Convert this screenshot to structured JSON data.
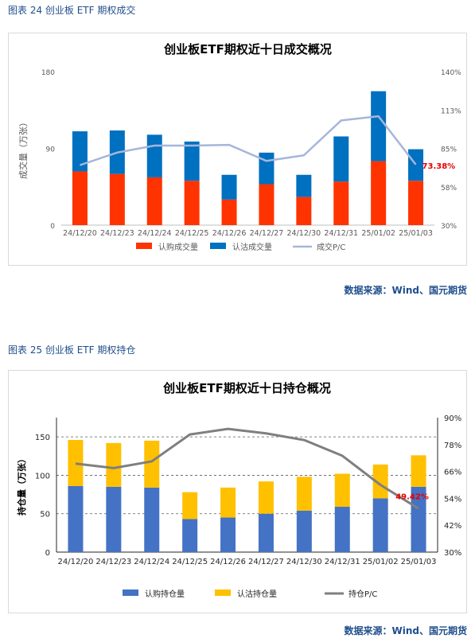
{
  "figures": [
    {
      "label": "图表 24 创业板 ETF 期权成交",
      "source": "数据来源：Wind、国元期货"
    },
    {
      "label": "图表 25 创业板 ETF 期权持仓",
      "source": "数据来源：Wind、国元期货"
    }
  ],
  "chart_data": [
    {
      "type": "bar",
      "stacked": true,
      "title": "创业板ETF期权近十日成交概况",
      "ylabel": "成交量（万张）",
      "xlabel": "",
      "ylim": [
        0,
        180
      ],
      "y_ticks": [
        "0",
        "90",
        "180"
      ],
      "y2lim": [
        30,
        140
      ],
      "y2_ticks": [
        "30%",
        "58%",
        "85%",
        "113%",
        "140%"
      ],
      "categories": [
        "24/12/20",
        "24/12/23",
        "24/12/24",
        "24/12/25",
        "24/12/26",
        "24/12/27",
        "24/12/30",
        "24/12/31",
        "25/01/02",
        "25/01/03"
      ],
      "series": [
        {
          "name": "认购成交量",
          "color": "#ff3300",
          "values": [
            63,
            60,
            56,
            52,
            30,
            48,
            33,
            51,
            75,
            52
          ]
        },
        {
          "name": "认沽成交量",
          "color": "#0070c0",
          "values": [
            47,
            51,
            50,
            46,
            29,
            37,
            26,
            53,
            82,
            37
          ]
        },
        {
          "name": "成交P/C",
          "color": "#a6b6da",
          "axis": "right",
          "kind": "line",
          "values": [
            73,
            82,
            87,
            87,
            87.5,
            76,
            80,
            105,
            108,
            73.38
          ]
        }
      ],
      "annotation": {
        "text": "73.38%",
        "color": "#e60000"
      },
      "legend": "bottom",
      "grid": false
    },
    {
      "type": "bar",
      "stacked": true,
      "title": "创业板ETF期权近十日持仓概况",
      "ylabel": "持仓量（万张）",
      "xlabel": "",
      "ylim": [
        0,
        175
      ],
      "y_ticks": [
        "0",
        "50",
        "100",
        "150"
      ],
      "y2lim": [
        30,
        90
      ],
      "y2_ticks": [
        "30%",
        "42%",
        "54%",
        "66%",
        "78%",
        "90%"
      ],
      "categories": [
        "24/12/20",
        "24/12/23",
        "24/12/24",
        "24/12/25",
        "24/12/26",
        "24/12/27",
        "24/12/30",
        "24/12/31",
        "25/01/02",
        "25/01/03"
      ],
      "series": [
        {
          "name": "认购持仓量",
          "color": "#4472c4",
          "values": [
            86,
            85,
            84,
            43,
            45,
            50,
            54,
            59,
            70,
            85
          ]
        },
        {
          "name": "认沽持仓量",
          "color": "#ffc000",
          "values": [
            60,
            57,
            61,
            35,
            39,
            42,
            44,
            43,
            44,
            41
          ]
        },
        {
          "name": "持仓P/C",
          "color": "#7f7f7f",
          "axis": "right",
          "kind": "line",
          "values": [
            69.5,
            67.5,
            70.5,
            82.5,
            85,
            83,
            80,
            73,
            60,
            49.42
          ]
        }
      ],
      "annotation": {
        "text": "49.42%",
        "color": "#e60000"
      },
      "legend": "bottom",
      "grid": true
    }
  ]
}
